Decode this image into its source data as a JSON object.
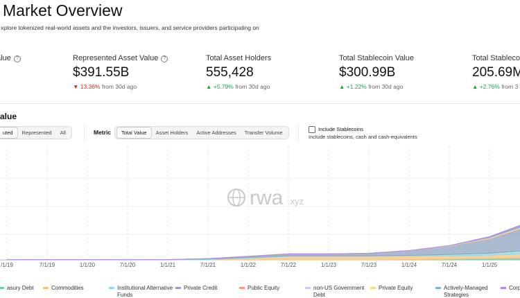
{
  "header": {
    "title": "Market Overview",
    "subtitle": "xplore tokenized real-world assets and the investors, issuers, and service providers participating on"
  },
  "stats": [
    {
      "label": "alue",
      "value": "",
      "change": "",
      "suffix": ""
    },
    {
      "label": "Represented Asset Value",
      "value": "$391.55B",
      "change": "▼ 13.36%",
      "suffix": "from 30d ago"
    },
    {
      "label": "Total Asset Holders",
      "value": "555,428",
      "change": "▲ +5.79%",
      "suffix": "from 30d ago"
    },
    {
      "label": "Total Stablecoin Value",
      "value": "$300.99B",
      "change": "▲ +1.22%",
      "suffix": "from 30d ago"
    },
    {
      "label": "Total Stablecoin",
      "value": "205.69M",
      "change": "▲ +2.76%",
      "suffix": "from 3"
    }
  ],
  "section": {
    "title": "alue"
  },
  "controls": {
    "view": [
      "uted",
      "Represented",
      "All"
    ],
    "metric_label": "Metric",
    "metric": [
      "Total Value",
      "Asset Holders",
      "Active Addresses",
      "Transfer Volume"
    ],
    "stablecoin_label": "Include Stablecoins",
    "stablecoin_note": "Include stablecoins, cash and cash-equivalents"
  },
  "watermark": {
    "main": "rwa",
    "suffix": ".xyz"
  },
  "chart_data": {
    "type": "stacked-area",
    "categories": [
      "/1/19",
      "7/1/19",
      "1/1/20",
      "7/1/20",
      "1/1/21",
      "7/1/21",
      "1/1/22",
      "7/1/22",
      "1/1/23",
      "7/1/23",
      "1/1/24",
      "7/1/24",
      "1/1/25",
      null
    ],
    "series": [
      {
        "name": "asury Debt",
        "color": "#6fc9a8",
        "values": [
          0,
          0,
          0,
          0,
          0,
          0,
          0,
          0,
          0,
          0,
          0.5,
          1,
          2,
          4
        ]
      },
      {
        "name": "Commodities",
        "color": "#f2c27f",
        "values": [
          0,
          0,
          0,
          0,
          0,
          0.5,
          3,
          6,
          6,
          6,
          6,
          6,
          6,
          7
        ]
      },
      {
        "name": "Institutional Alternative Funds",
        "color": "#8fdbe8",
        "values": [
          0.5,
          0.5,
          0.5,
          0.5,
          0.5,
          1,
          1,
          1,
          1,
          1,
          1,
          2,
          3,
          5
        ]
      },
      {
        "name": "Private Credit",
        "color": "#8ea3bf",
        "values": [
          0,
          0,
          0,
          0,
          0,
          0.5,
          2,
          3,
          3,
          4,
          8,
          14,
          24,
          40
        ]
      },
      {
        "name": "Public Equity",
        "color": "#f49a7c",
        "values": [
          0,
          0,
          0,
          0,
          0,
          0,
          0,
          0,
          0,
          0,
          0,
          0,
          0.5,
          1
        ]
      },
      {
        "name": "non-US Government Debt",
        "color": "#cfcbf0",
        "values": [
          0,
          0,
          0,
          0,
          0,
          0,
          0,
          0,
          0,
          0,
          0,
          0.5,
          1,
          2
        ]
      },
      {
        "name": "Private Equity",
        "color": "#f6dc7a",
        "values": [
          0,
          0,
          0,
          0,
          0,
          0,
          0,
          0,
          0,
          0,
          0,
          0.5,
          1,
          1
        ]
      },
      {
        "name": "Actively-Managed Strategies",
        "color": "#7fb0cc",
        "values": [
          0,
          0,
          0,
          0,
          0,
          0,
          0,
          0,
          0,
          0,
          0,
          0,
          1,
          3
        ]
      },
      {
        "name": "Corp",
        "color": "#b487e6",
        "values": [
          0,
          0,
          0,
          0,
          0,
          0,
          0,
          0,
          0,
          0,
          0,
          0,
          0.5,
          1
        ]
      }
    ]
  }
}
